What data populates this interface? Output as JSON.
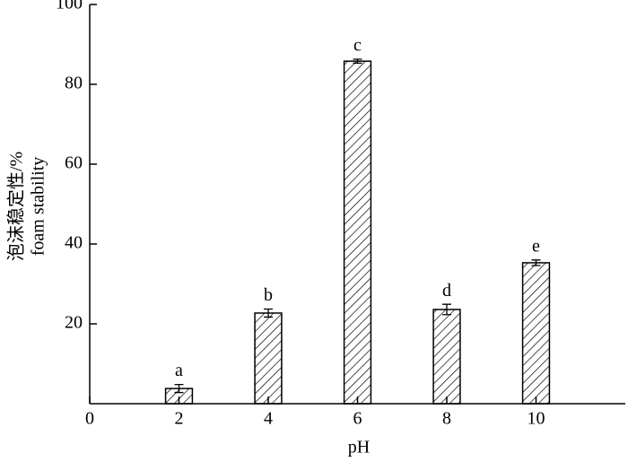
{
  "chart_data": {
    "type": "bar",
    "x_label": "pH",
    "y_label": [
      "泡沫稳定性/%",
      "foam stability"
    ],
    "x": [
      2,
      4,
      6,
      8,
      10
    ],
    "values": [
      3.8,
      22.7,
      85.8,
      23.6,
      35.3
    ],
    "errors": [
      1.0,
      1.0,
      0.5,
      1.3,
      0.7
    ],
    "annotations": [
      "a",
      "b",
      "c",
      "d",
      "e"
    ],
    "color": "#000000",
    "xlim": [
      0,
      12
    ],
    "xticks": [
      0,
      2,
      4,
      6,
      8,
      10
    ],
    "ylim": [
      0,
      100
    ],
    "yticks": [
      20,
      40,
      60,
      80,
      100
    ],
    "bar_width": 0.6
  }
}
